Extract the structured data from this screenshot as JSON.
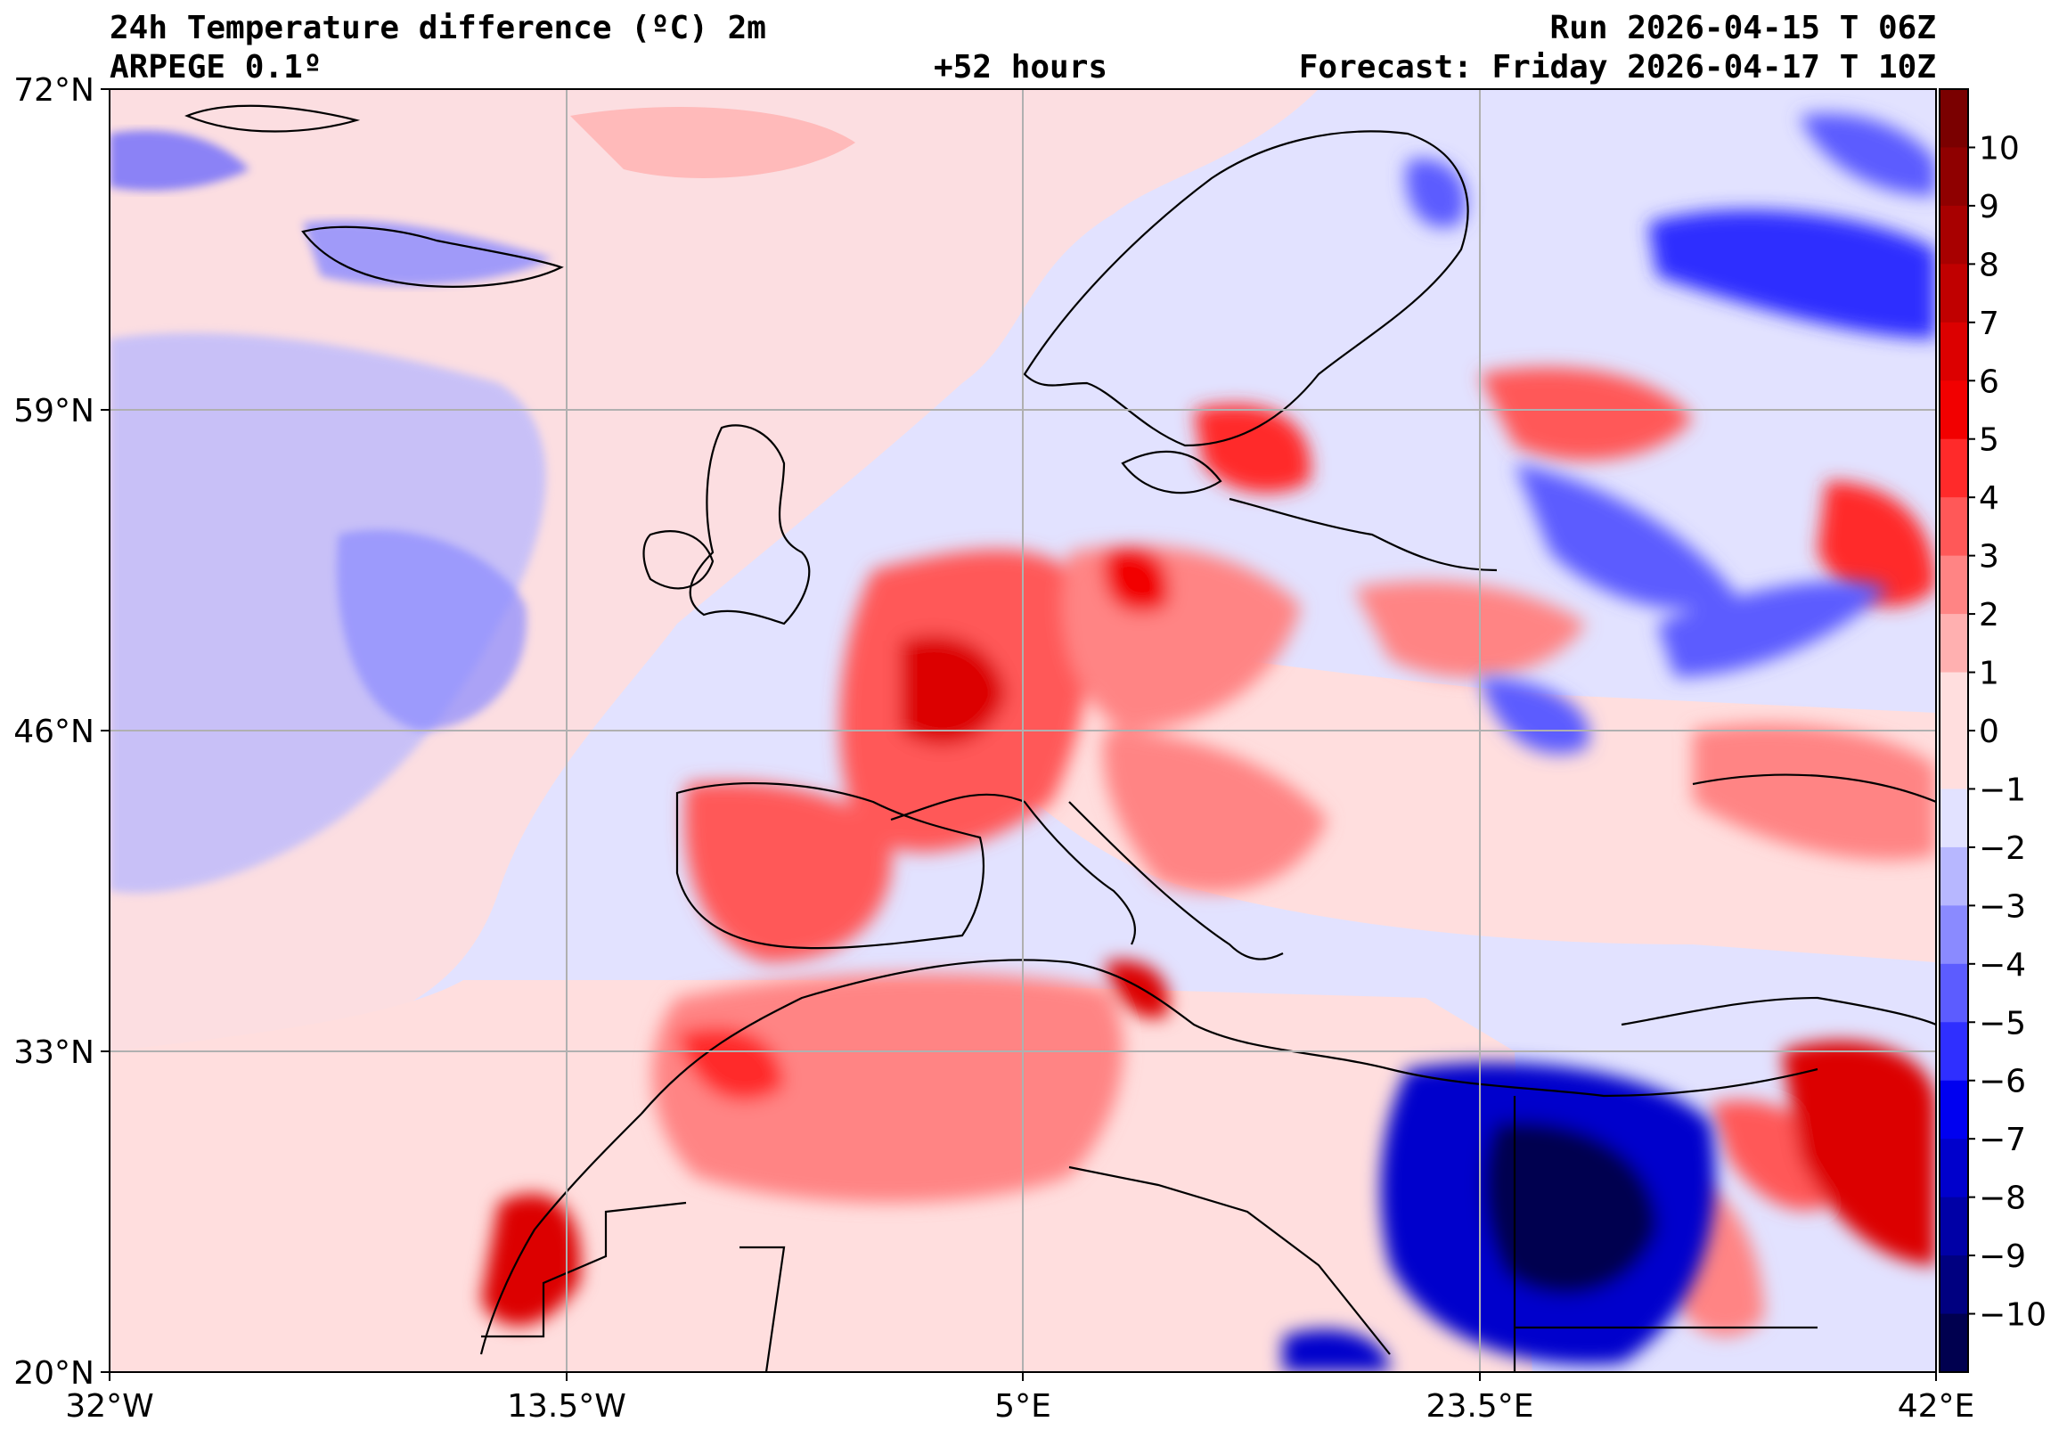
{
  "header": {
    "title": "24h Temperature difference (ºC) 2m",
    "model": "ARPEGE 0.1º",
    "lead": "+52 hours",
    "run": "Run 2026-04-15 T 06Z",
    "forecast": "Forecast: Friday 2026-04-17 T 10Z"
  },
  "axes": {
    "lat_labels": [
      "72°N",
      "59°N",
      "46°N",
      "33°N",
      "20°N"
    ],
    "lon_labels": [
      "32°W",
      "13.5°W",
      "5°E",
      "23.5°E",
      "42°E"
    ]
  },
  "colorbar": {
    "ticks": [
      "10",
      "9",
      "8",
      "7",
      "6",
      "5",
      "4",
      "3",
      "2",
      "1",
      "0",
      "−1",
      "−2",
      "−3",
      "−4",
      "−5",
      "−6",
      "−7",
      "−8",
      "−9",
      "−10"
    ],
    "colors": [
      "#7a0000",
      "#8f0000",
      "#a80000",
      "#c00000",
      "#dc0000",
      "#f20000",
      "#ff2a2a",
      "#ff5858",
      "#ff8484",
      "#ffb0b0",
      "#ffdede",
      "#e2e2ff",
      "#b7b7ff",
      "#8a8aff",
      "#5c5cff",
      "#2f2fff",
      "#0000f0",
      "#0000cc",
      "#0000a6",
      "#000080",
      "#00004f"
    ]
  }
}
